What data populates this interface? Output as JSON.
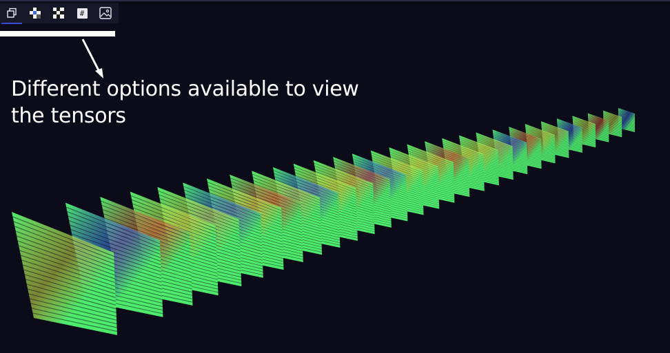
{
  "toolbar": {
    "buttons": [
      {
        "name": "view-3d",
        "icon": "stack-icon",
        "active": true
      },
      {
        "name": "view-checker-a",
        "icon": "checker-icon",
        "active": false
      },
      {
        "name": "view-checker-b",
        "icon": "checker-icon",
        "active": false
      },
      {
        "name": "view-numeric",
        "icon": "hash-icon",
        "label": "#",
        "active": false
      },
      {
        "name": "view-image",
        "icon": "image-icon",
        "active": false
      }
    ]
  },
  "annotation": {
    "text": "Different options available to view the tensors"
  },
  "visualization": {
    "kind": "3d-tensor-slices",
    "colors": {
      "base": "#4eea6c",
      "low": "#3d6ee0",
      "high": "#e05a3a",
      "mid": "#d4e84a",
      "background": "#0b0b1a"
    }
  }
}
